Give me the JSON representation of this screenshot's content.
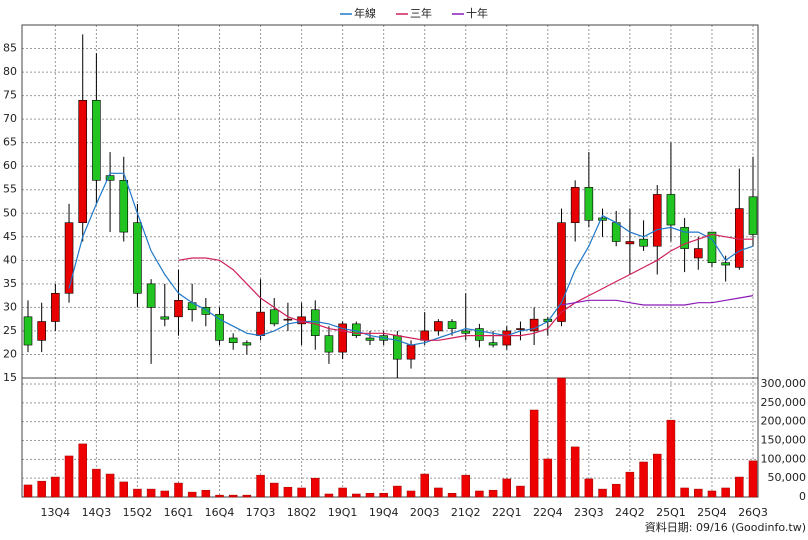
{
  "chart_data": {
    "type": "candlestick",
    "categories": [
      null,
      null,
      "13Q4",
      null,
      null,
      "14Q3",
      null,
      null,
      "15Q2",
      null,
      null,
      "16Q1",
      null,
      null,
      "16Q4",
      null,
      null,
      "17Q3",
      null,
      null,
      "18Q2",
      null,
      null,
      "19Q1",
      null,
      null,
      "19Q4",
      null,
      null,
      "20Q3",
      null,
      null,
      "21Q2",
      null,
      null,
      "22Q1",
      null,
      null,
      "22Q4",
      null,
      null,
      "23Q3",
      null,
      null,
      "24Q2",
      null,
      null,
      "25Q1",
      null,
      null,
      "25Q4",
      null,
      null,
      "26Q3"
    ],
    "open": [
      28,
      23,
      27,
      33,
      48,
      74,
      58,
      57,
      48,
      35,
      28,
      28,
      31,
      30,
      28.5,
      23.5,
      22.5,
      24,
      29.5,
      27.5,
      26.5,
      29.5,
      24,
      20.5,
      26.5,
      23.5,
      24,
      24,
      19,
      23,
      25,
      27,
      25,
      25.5,
      22.5,
      22,
      25.5,
      25,
      27.5,
      27,
      48,
      55.5,
      49,
      48,
      43.5,
      44.5,
      43,
      54,
      47,
      40.5,
      46,
      39.5,
      38.5,
      53.5
    ],
    "high": [
      31.5,
      31,
      35,
      52,
      88,
      84,
      63,
      62,
      52,
      36,
      35,
      38,
      35,
      32,
      30,
      24.5,
      23,
      36,
      32,
      31,
      31,
      31.5,
      26,
      27,
      27,
      25,
      25,
      25,
      23,
      29,
      27.5,
      27.5,
      33,
      26.5,
      25,
      26,
      27,
      30,
      28,
      51,
      57,
      63,
      51,
      50.5,
      51,
      48.5,
      56,
      65,
      49,
      45,
      46,
      41,
      59.5,
      62
    ],
    "low": [
      20.5,
      20.5,
      25,
      31,
      44,
      52,
      46,
      44,
      30,
      18,
      26,
      24,
      27,
      26,
      22,
      21,
      20,
      23,
      26,
      25,
      22,
      21,
      18,
      19,
      23.5,
      22,
      22,
      15,
      17,
      22,
      24,
      24,
      23,
      21.5,
      21.5,
      21,
      23,
      22,
      24,
      26,
      44,
      47,
      45,
      43,
      37,
      42,
      37,
      44,
      37.5,
      38,
      38.5,
      35.5,
      38,
      43
    ],
    "close": [
      22,
      27,
      33,
      48,
      74,
      57,
      57,
      46,
      33,
      30,
      27.5,
      31.5,
      29.5,
      28.5,
      23,
      22.5,
      22,
      29,
      26.5,
      27.5,
      28,
      24,
      20.5,
      26.5,
      24,
      23,
      23,
      19,
      22,
      25,
      27,
      25.5,
      24.5,
      23,
      22,
      25,
      25.5,
      27.5,
      27,
      48,
      55.5,
      48.5,
      48.5,
      44,
      44,
      43,
      54,
      47.5,
      42.5,
      42.5,
      39.5,
      39,
      51,
      45.5
    ],
    "up_color": "#e80000",
    "down_color": "#22c422",
    "series": [
      {
        "name": "年線",
        "color": "#1f78c8",
        "values": [
          null,
          null,
          null,
          34,
          45,
          52,
          58.5,
          58.5,
          50,
          42,
          37,
          33,
          31,
          29.5,
          27.5,
          26,
          24.5,
          24,
          25,
          26.5,
          27,
          27,
          26.5,
          25.5,
          25,
          24,
          23.5,
          23,
          22,
          22.5,
          23.5,
          24.5,
          25.5,
          25,
          24.5,
          24,
          25,
          25.5,
          27,
          31,
          38,
          43,
          49.5,
          48,
          46,
          45,
          46.5,
          47,
          46,
          46,
          44.5,
          40,
          42,
          43
        ]
      },
      {
        "name": "三年",
        "color": "#d0205a",
        "values": [
          null,
          null,
          null,
          null,
          null,
          null,
          null,
          null,
          null,
          null,
          null,
          40,
          40.5,
          40.5,
          40,
          38,
          35,
          32,
          30,
          28,
          27,
          26.5,
          25.5,
          25,
          24.5,
          24.5,
          24.5,
          24,
          23.5,
          23,
          23,
          23.5,
          24,
          24,
          24,
          24,
          24,
          24.5,
          25.5,
          29,
          31,
          32.5,
          34,
          35.5,
          37,
          38.5,
          40,
          42,
          43.5,
          44.5,
          45.5,
          45,
          44.5,
          44.5
        ]
      },
      {
        "name": "十年",
        "color": "#8a1ab8",
        "values": [
          null,
          null,
          null,
          null,
          null,
          null,
          null,
          null,
          null,
          null,
          null,
          null,
          null,
          null,
          null,
          null,
          null,
          null,
          null,
          null,
          null,
          null,
          null,
          null,
          null,
          null,
          null,
          null,
          null,
          null,
          null,
          null,
          null,
          null,
          null,
          null,
          null,
          null,
          null,
          30.5,
          31,
          31.5,
          31.5,
          31.5,
          31,
          30.5,
          30.5,
          30.5,
          30.5,
          31,
          31,
          31.5,
          32,
          32.5
        ]
      }
    ],
    "ylim": [
      15,
      90
    ],
    "yticks": [
      15,
      20,
      25,
      30,
      35,
      40,
      45,
      50,
      55,
      60,
      65,
      70,
      75,
      80,
      85
    ],
    "grid": true,
    "legend": "top",
    "volume": {
      "type": "bar",
      "color": "#ee0000",
      "values": [
        32000,
        42000,
        53000,
        109000,
        141000,
        74000,
        61000,
        40000,
        21000,
        21000,
        16000,
        37000,
        13000,
        18000,
        5000,
        5000,
        5000,
        58000,
        37000,
        26000,
        24000,
        50000,
        8000,
        24000,
        8000,
        10000,
        10000,
        29000,
        16000,
        61000,
        24000,
        10000,
        58000,
        16000,
        18000,
        48000,
        29000,
        231000,
        101000,
        316000,
        133000,
        48000,
        21000,
        34000,
        66000,
        93000,
        114000,
        204000,
        24000,
        21000,
        16000,
        24000,
        53000,
        96000
      ],
      "ylim": [
        0,
        316000
      ],
      "yticks": [
        0,
        {
          "value": 50000,
          "label": "50,000"
        },
        {
          "value": 100000,
          "label": "100,000"
        },
        {
          "value": 150000,
          "label": "150,000"
        },
        {
          "value": 200000,
          "label": "200,000"
        },
        {
          "value": 250000,
          "label": "250,000"
        },
        {
          "value": 300000,
          "label": "300,000"
        }
      ]
    }
  },
  "footer": "資料日期: 09/16 (Goodinfo.tw)"
}
